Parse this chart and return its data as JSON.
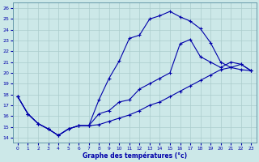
{
  "xlabel": "Graphe des températures (°c)",
  "bg_color": "#cce8e8",
  "grid_color": "#aacccc",
  "line_color": "#0000aa",
  "xlim": [
    -0.5,
    23.5
  ],
  "ylim": [
    13.5,
    26.5
  ],
  "yticks": [
    14,
    15,
    16,
    17,
    18,
    19,
    20,
    21,
    22,
    23,
    24,
    25,
    26
  ],
  "xticks": [
    0,
    1,
    2,
    3,
    4,
    5,
    6,
    7,
    8,
    9,
    10,
    11,
    12,
    13,
    14,
    15,
    16,
    17,
    18,
    19,
    20,
    21,
    22,
    23
  ],
  "line1_x": [
    0,
    1,
    2,
    3,
    4,
    5,
    6,
    7,
    8,
    9,
    10,
    11,
    12,
    13,
    14,
    15,
    16,
    17,
    18,
    19,
    20,
    21,
    22,
    23
  ],
  "line1_y": [
    17.8,
    16.2,
    15.3,
    14.8,
    14.2,
    14.8,
    15.1,
    15.1,
    17.5,
    19.5,
    21.1,
    23.2,
    23.5,
    25.0,
    25.3,
    25.7,
    25.2,
    24.8,
    24.1,
    22.8,
    21.0,
    20.5,
    20.3,
    20.2
  ],
  "line2_x": [
    0,
    1,
    2,
    3,
    4,
    5,
    6,
    7,
    8,
    9,
    10,
    11,
    12,
    13,
    14,
    15,
    16,
    17,
    18,
    19,
    20,
    21,
    22,
    23
  ],
  "line2_y": [
    17.8,
    16.2,
    15.3,
    14.8,
    14.2,
    14.8,
    15.1,
    15.1,
    16.2,
    16.5,
    17.3,
    17.5,
    18.5,
    19.0,
    19.5,
    20.0,
    22.7,
    23.1,
    21.5,
    21.0,
    20.5,
    21.0,
    20.8,
    20.2
  ],
  "line3_x": [
    0,
    1,
    2,
    3,
    4,
    5,
    6,
    7,
    8,
    9,
    10,
    11,
    12,
    13,
    14,
    15,
    16,
    17,
    18,
    19,
    20,
    21,
    22,
    23
  ],
  "line3_y": [
    17.8,
    16.2,
    15.3,
    14.8,
    14.2,
    14.8,
    15.1,
    15.1,
    15.2,
    15.5,
    15.8,
    16.1,
    16.5,
    17.0,
    17.3,
    17.8,
    18.3,
    18.8,
    19.3,
    19.8,
    20.3,
    20.5,
    20.8,
    20.2
  ]
}
